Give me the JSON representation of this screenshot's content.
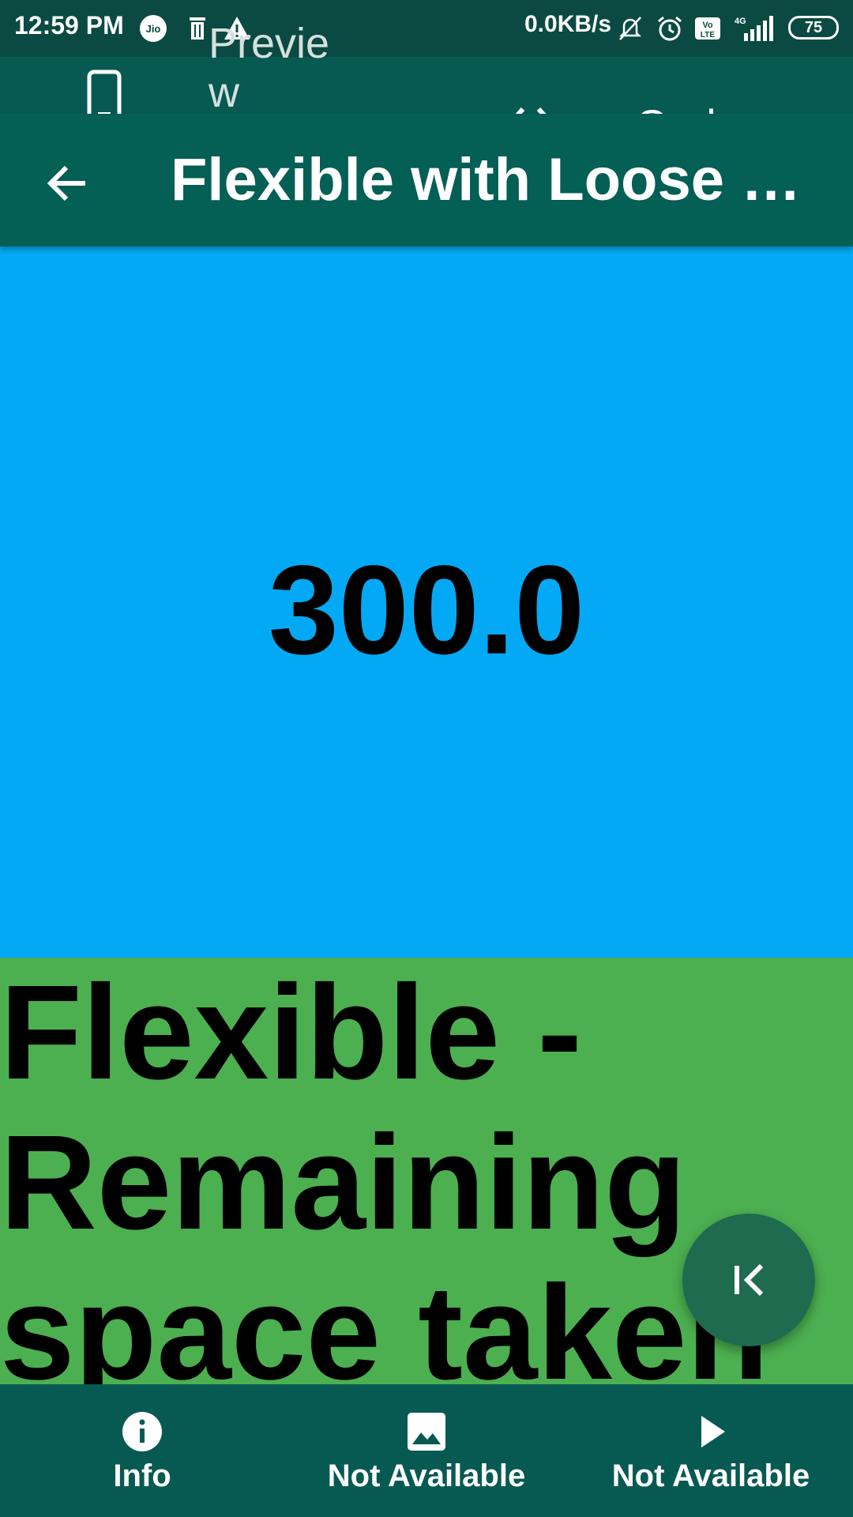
{
  "status_bar": {
    "time": "12:59 PM",
    "netspeed": "0.0KB/s",
    "battery": "75",
    "icons": [
      "jio-icon",
      "trash-icon",
      "warning-icon",
      "mute-icon",
      "alarm-icon",
      "volte-icon",
      "signal-icon",
      "battery-icon"
    ]
  },
  "toggle": {
    "preview_label": "Preview",
    "code_label": "Code"
  },
  "app_bar": {
    "title": "Flexible with Loose Fit"
  },
  "content": {
    "size_value": "300.0",
    "flexible_text": "Flexible - Remaining space taken"
  },
  "bottom_nav": {
    "items": [
      {
        "label": "Info",
        "icon": "info-icon"
      },
      {
        "label": "Not Available",
        "icon": "image-icon"
      },
      {
        "label": "Not Available",
        "icon": "play-icon"
      }
    ]
  },
  "colors": {
    "status_bar": "#0a4a42",
    "app_bar": "#045f55",
    "blue_box": "#03a9f4",
    "green_box": "#4caf50",
    "fab": "#1e6b50",
    "bottom_nav": "#075a52"
  }
}
